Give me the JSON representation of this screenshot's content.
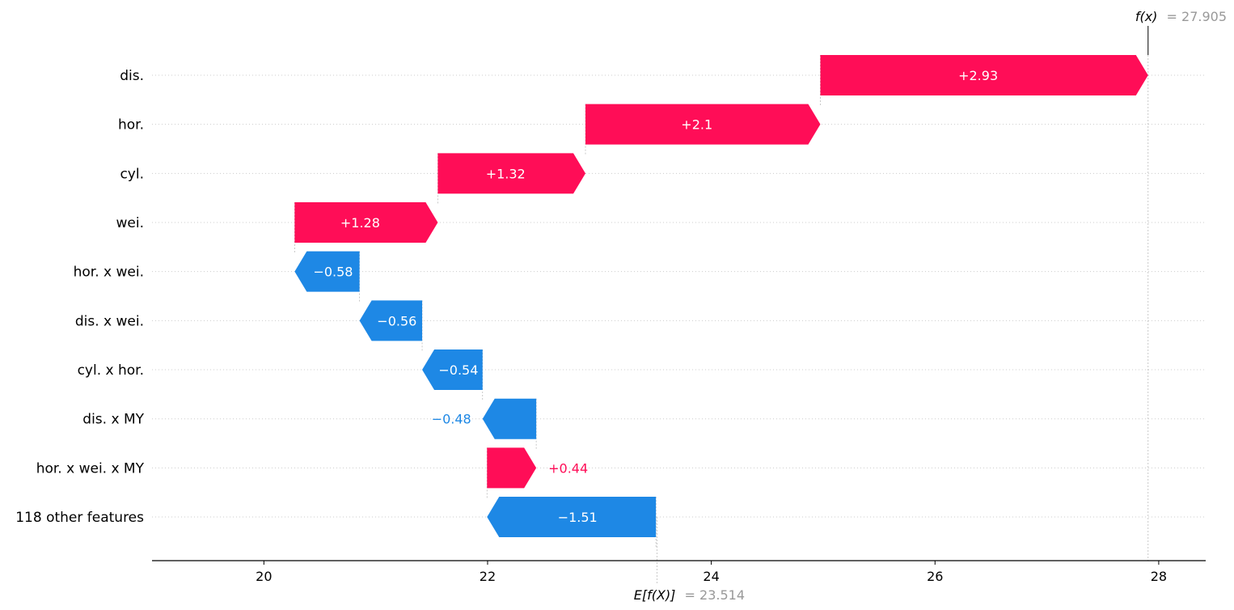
{
  "chart_data": {
    "type": "waterfall",
    "base_value": 23.514,
    "base_label": "E[f(X)]",
    "output_value": 27.905,
    "output_label": "f(x)",
    "features": [
      {
        "name": "dis.",
        "value": 2.93,
        "label": "+2.93"
      },
      {
        "name": "hor.",
        "value": 2.1,
        "label": "+2.1"
      },
      {
        "name": "cyl.",
        "value": 1.32,
        "label": "+1.32"
      },
      {
        "name": "wei.",
        "value": 1.28,
        "label": "+1.28"
      },
      {
        "name": "hor. x wei.",
        "value": -0.58,
        "label": "−0.58"
      },
      {
        "name": "dis. x wei.",
        "value": -0.56,
        "label": "−0.56"
      },
      {
        "name": "cyl. x hor.",
        "value": -0.54,
        "label": "−0.54"
      },
      {
        "name": "dis. x MY",
        "value": -0.48,
        "label": "−0.48"
      },
      {
        "name": "hor. x wei. x MY",
        "value": 0.44,
        "label": "+0.44"
      },
      {
        "name": "118 other features",
        "value": -1.51,
        "label": "−1.51"
      }
    ],
    "xlim": [
      19.0,
      28.42
    ],
    "xticks": [
      20,
      22,
      24,
      26,
      28
    ],
    "xtick_labels": [
      "20",
      "22",
      "24",
      "26",
      "28"
    ],
    "base_value_text": "= 23.514",
    "output_value_text": "= 27.905",
    "grid": "dotted horizontal per row",
    "colors": {
      "positive": "#ff0d57",
      "negative": "#1e88e5"
    }
  }
}
